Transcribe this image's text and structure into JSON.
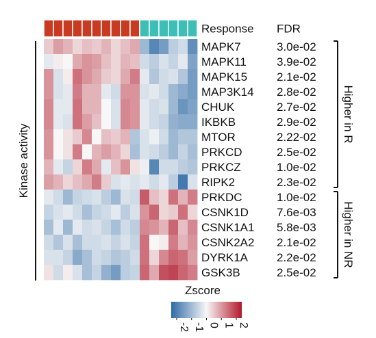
{
  "chart_data": {
    "type": "heatmap",
    "response_label": "Response",
    "fdr_label": "FDR",
    "y_axis_label": "Kinase activity",
    "legend_title": "Zscore",
    "legend_ticks": [
      -2,
      -1,
      0,
      1,
      2
    ],
    "legend_ticks_text": [
      "-2",
      "-1",
      "0",
      "1",
      "2"
    ],
    "color_scale": {
      "low": "#2f6ba6",
      "mid": "#f7f7f7",
      "high": "#b2182b",
      "domain": [
        -2,
        0,
        2
      ]
    },
    "groups": [
      {
        "label": "Higher in R",
        "rows": [
          0,
          9
        ]
      },
      {
        "label": "Higher in NR",
        "rows": [
          10,
          15
        ]
      }
    ],
    "response": {
      "colors": {
        "R": "#c93a22",
        "NR": "#3dbfb8"
      },
      "columns": [
        "R",
        "R",
        "R",
        "R",
        "R",
        "R",
        "R",
        "R",
        "R",
        "R",
        "NR",
        "NR",
        "NR",
        "NR",
        "NR",
        "NR"
      ]
    },
    "rows": [
      {
        "kinase": "MAPK7",
        "fdr": "3.0e-02",
        "values": [
          0.4,
          0.8,
          0.6,
          0.3,
          0.5,
          0.4,
          0.6,
          0.3,
          0.5,
          0.7,
          -0.9,
          -1.6,
          -1.3,
          -0.6,
          -0.4,
          -1.5
        ]
      },
      {
        "kinase": "MAPK11",
        "fdr": "3.9e-02",
        "values": [
          -0.2,
          0.1,
          0.0,
          0.7,
          0.9,
          0.8,
          0.5,
          0.3,
          0.6,
          0.5,
          -0.4,
          -0.6,
          -0.3,
          -0.5,
          -0.2,
          -1.2
        ]
      },
      {
        "kinase": "MAPK15",
        "fdr": "2.1e-02",
        "values": [
          0.9,
          -0.3,
          0.1,
          1.2,
          0.9,
          0.7,
          0.4,
          0.3,
          0.7,
          1.1,
          -0.2,
          -0.7,
          -0.4,
          -0.3,
          -0.7,
          -1.3
        ]
      },
      {
        "kinase": "MAP3K14",
        "fdr": "2.8e-02",
        "values": [
          0.9,
          -0.3,
          -0.2,
          1.1,
          0.6,
          0.6,
          -0.2,
          -0.4,
          0.9,
          0.9,
          -0.3,
          -0.2,
          -0.4,
          -0.9,
          -1.1,
          -1.3
        ]
      },
      {
        "kinase": "CHUK",
        "fdr": "2.7e-02",
        "values": [
          1.0,
          -0.2,
          -0.2,
          1.2,
          0.6,
          0.6,
          0.0,
          -0.3,
          1.0,
          0.9,
          -0.2,
          -0.4,
          -0.3,
          -0.9,
          -1.4,
          -1.2
        ]
      },
      {
        "kinase": "IKBKB",
        "fdr": "2.9e-02",
        "values": [
          1.0,
          -0.2,
          -0.3,
          1.2,
          0.8,
          0.5,
          0.0,
          -0.3,
          1.0,
          0.9,
          -0.2,
          -0.4,
          -0.5,
          -1.0,
          -1.1,
          -1.1
        ]
      },
      {
        "kinase": "MTOR",
        "fdr": "2.22-02",
        "values": [
          0.9,
          0.0,
          0.2,
          0.4,
          1.0,
          0.0,
          0.5,
          0.4,
          0.6,
          -0.7,
          -0.3,
          -0.1,
          -0.4,
          -0.9,
          -0.7,
          -0.7
        ]
      },
      {
        "kinase": "PRKCD",
        "fdr": "2.5e-02",
        "values": [
          0.9,
          0.0,
          0.2,
          1.1,
          0.0,
          0.6,
          0.8,
          0.6,
          0.3,
          -0.8,
          -0.3,
          -0.4,
          -0.6,
          -0.9,
          -0.5,
          -0.8
        ]
      },
      {
        "kinase": "PRKCZ",
        "fdr": "1.0e-02",
        "values": [
          0.6,
          -0.2,
          -0.5,
          0.3,
          1.1,
          0.7,
          -0.2,
          0.5,
          0.9,
          0.2,
          -0.1,
          -1.6,
          -0.4,
          -0.4,
          -0.6,
          -0.7
        ]
      },
      {
        "kinase": "RIPK2",
        "fdr": "2.3e-02",
        "values": [
          0.8,
          0.6,
          0.3,
          0.5,
          0.7,
          1.1,
          0.4,
          -0.3,
          -0.2,
          -0.3,
          -0.2,
          -0.4,
          -0.2,
          -0.6,
          -1.8,
          -0.3
        ]
      },
      {
        "kinase": "PRKDC",
        "fdr": "1.0e-02",
        "values": [
          -0.2,
          -0.4,
          -0.9,
          -0.5,
          -0.4,
          -0.3,
          -0.6,
          -0.9,
          -0.3,
          -0.4,
          1.4,
          0.5,
          0.3,
          1.2,
          0.6,
          1.1
        ]
      },
      {
        "kinase": "CSNK1D",
        "fdr": "7.6e-03",
        "values": [
          -0.5,
          -0.3,
          -0.2,
          -0.4,
          -0.8,
          -0.5,
          -0.4,
          -0.2,
          -0.6,
          -0.3,
          0.9,
          1.3,
          0.3,
          0.4,
          1.2,
          0.3
        ]
      },
      {
        "kinase": "CSNK1A1",
        "fdr": "5.8e-03",
        "values": [
          -0.8,
          -0.2,
          -0.9,
          -0.2,
          -0.4,
          -0.3,
          -0.5,
          -0.8,
          -0.4,
          -0.6,
          1.0,
          0.9,
          0.6,
          1.3,
          0.5,
          1.0
        ]
      },
      {
        "kinase": "CSNK2A2",
        "fdr": "2.1e-02",
        "values": [
          -0.4,
          -0.7,
          -0.3,
          -0.8,
          -0.4,
          -0.4,
          -0.3,
          -0.5,
          -0.3,
          -0.5,
          1.2,
          0.0,
          0.1,
          1.1,
          0.6,
          0.9
        ]
      },
      {
        "kinase": "DYRK1A",
        "fdr": "2.2e-02",
        "values": [
          -0.3,
          -0.3,
          -0.5,
          -1.1,
          -0.8,
          -0.4,
          -0.5,
          -0.7,
          -0.6,
          -0.4,
          1.2,
          0.3,
          1.0,
          1.3,
          1.2,
          0.8
        ]
      },
      {
        "kinase": "GSK3B",
        "fdr": "2.5e-02",
        "values": [
          0.2,
          -0.4,
          0.1,
          -0.3,
          -0.8,
          -0.5,
          -1.0,
          -1.3,
          -0.6,
          -0.5,
          1.3,
          0.7,
          1.5,
          1.6,
          1.3,
          1.1
        ]
      }
    ]
  }
}
